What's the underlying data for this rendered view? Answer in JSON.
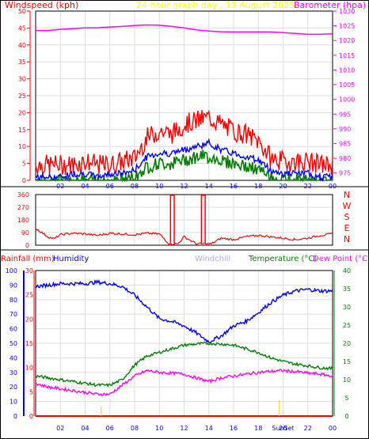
{
  "colors": {
    "wind_title": "#ff0000",
    "graph_title": "#ffff00",
    "barometer": "#ff00ff",
    "gust": "#ff0000",
    "wind_avg": "#0000ff",
    "wind_low": "#008000",
    "direction": "#ff0000",
    "rain": "#ff0000",
    "humidity": "#0000ff",
    "windchill": "#aaaaff",
    "temperature": "#008000",
    "dewpoint": "#ff00ff"
  },
  "chart_data": [
    {
      "type": "line",
      "title": "24 hour graph day , 19 August 2025",
      "ylabel": "Windspeed (kph)",
      "y2label": "Barometer (hpa)",
      "x_ticks": [
        "02",
        "04",
        "06",
        "08",
        "10",
        "12",
        "14",
        "16",
        "18",
        "20",
        "22",
        "00"
      ],
      "y_ticks": [
        "0",
        "5",
        "10",
        "15",
        "20",
        "25",
        "30",
        "35",
        "40",
        "45",
        "50"
      ],
      "y2_ticks": [
        "975",
        "980",
        "985",
        "990",
        "995",
        "1000",
        "1005",
        "1010",
        "1015",
        "1020",
        "1025",
        "1030"
      ],
      "xlim": [
        0,
        24
      ],
      "ylim": [
        0,
        50
      ],
      "y2lim": [
        972.5,
        1030
      ],
      "grid": true,
      "series": [
        {
          "axis": "right",
          "color": "barometer",
          "x": [
            0,
            1,
            2,
            3,
            4,
            5,
            6,
            7,
            8,
            9,
            10,
            11,
            12,
            13,
            14,
            15,
            16,
            17,
            18,
            19,
            20,
            21,
            22,
            23,
            24
          ],
          "values": [
            1023.4,
            1023.4,
            1023.8,
            1024.0,
            1024.3,
            1024.3,
            1024.6,
            1024.8,
            1025.1,
            1025.3,
            1025.2,
            1024.8,
            1024.3,
            1023.6,
            1023.2,
            1023.0,
            1022.9,
            1022.9,
            1022.9,
            1022.9,
            1022.7,
            1022.4,
            1022.1,
            1022.1,
            1022.3
          ]
        },
        {
          "axis": "left",
          "color": "gust",
          "x": [
            0,
            1,
            2,
            3,
            4,
            5,
            6,
            7,
            8,
            9,
            10,
            11,
            12,
            13,
            14,
            15,
            16,
            17,
            18,
            19,
            20,
            21,
            22,
            23,
            24
          ],
          "values": [
            4,
            4,
            4,
            4,
            5,
            4,
            4,
            5,
            6,
            12,
            14,
            13,
            16,
            17,
            18,
            16,
            14,
            13,
            11,
            6,
            5,
            5,
            5,
            4,
            4
          ]
        },
        {
          "axis": "left",
          "color": "wind_avg",
          "x": [
            0,
            1,
            2,
            3,
            4,
            5,
            6,
            7,
            8,
            9,
            10,
            11,
            12,
            13,
            14,
            15,
            16,
            17,
            18,
            19,
            20,
            21,
            22,
            23,
            24
          ],
          "values": [
            1,
            1,
            1,
            2,
            2,
            1,
            2,
            2,
            3,
            7,
            8,
            8,
            9,
            10,
            11,
            9,
            8,
            7,
            6,
            3,
            2,
            2,
            2,
            1,
            1
          ]
        },
        {
          "axis": "left",
          "color": "wind_low",
          "x": [
            0,
            1,
            2,
            3,
            4,
            5,
            6,
            7,
            8,
            9,
            10,
            11,
            12,
            13,
            14,
            15,
            16,
            17,
            18,
            19,
            20,
            21,
            22,
            23,
            24
          ],
          "values": [
            0,
            0,
            0,
            0,
            0,
            0,
            0,
            0,
            1,
            4,
            5,
            5,
            6,
            7,
            7,
            6,
            5,
            4,
            3,
            1,
            0,
            0,
            0,
            0,
            0
          ]
        }
      ]
    },
    {
      "type": "line",
      "xlim": [
        0,
        24
      ],
      "ylim": [
        0,
        360
      ],
      "y_ticks": [
        "0",
        "90",
        "180",
        "270",
        "360"
      ],
      "compass": [
        "N",
        "W",
        "S",
        "E",
        "N"
      ],
      "series": [
        {
          "color": "direction",
          "x": [
            0,
            0.5,
            1,
            1.5,
            2,
            3,
            4,
            5,
            6,
            7,
            8,
            9,
            10,
            10.8,
            11.5,
            12,
            13,
            13.4,
            14.2,
            15,
            16,
            17,
            18,
            19,
            20,
            21,
            22,
            23,
            24
          ],
          "values": [
            120,
            90,
            60,
            45,
            75,
            85,
            80,
            70,
            85,
            80,
            75,
            85,
            80,
            10,
            10,
            60,
            10,
            10,
            10,
            50,
            40,
            60,
            70,
            60,
            50,
            40,
            50,
            70,
            80
          ]
        }
      ]
    },
    {
      "type": "line",
      "legend": [
        "Rainfall (mm)",
        "Humidity",
        "Windchill",
        "Temperature (°C)",
        "Dew Point (°C)"
      ],
      "x_ticks": [
        "02",
        "04",
        "06",
        "08",
        "10",
        "12",
        "14",
        "16",
        "18",
        "SunSet",
        "20",
        "22",
        "00"
      ],
      "y_ticks": [
        "0",
        "10",
        "20",
        "30",
        "40",
        "50",
        "60",
        "70",
        "80",
        "90",
        "100"
      ],
      "rain_ticks": [
        "0",
        "5",
        "10",
        "15",
        "20",
        "25",
        "30"
      ],
      "y2_ticks": [
        "0",
        "5",
        "10",
        "15",
        "20",
        "25",
        "30",
        "35",
        "40"
      ],
      "xlim": [
        0,
        24
      ],
      "ylim": [
        0,
        100
      ],
      "y2lim": [
        0,
        40
      ],
      "series": [
        {
          "axis": "left",
          "name": "Humidity",
          "color": "humidity",
          "x": [
            0,
            1,
            2,
            3,
            4,
            5,
            6,
            7,
            8,
            9,
            10,
            11,
            12,
            13,
            14,
            15,
            16,
            17,
            18,
            19,
            20,
            21,
            22,
            23,
            24
          ],
          "values": [
            89,
            90,
            91,
            91,
            91,
            92,
            91,
            89,
            83,
            75,
            67,
            65,
            62,
            57,
            51,
            55,
            62,
            65,
            71,
            78,
            83,
            86,
            87,
            86,
            86
          ]
        },
        {
          "axis": "right",
          "name": "Temperature (°C)",
          "color": "temperature",
          "x": [
            0,
            1,
            2,
            3,
            4,
            5,
            6,
            7,
            8,
            9,
            10,
            11,
            12,
            13,
            14,
            15,
            16,
            17,
            18,
            19,
            20,
            21,
            22,
            23,
            24
          ],
          "values": [
            11,
            10.5,
            10,
            9.5,
            9,
            8.5,
            8.5,
            10,
            14,
            16.5,
            17.5,
            18.5,
            19.5,
            19.8,
            20,
            19.8,
            19.5,
            18.5,
            17.5,
            16,
            15,
            14.3,
            13.8,
            13.3,
            13
          ]
        },
        {
          "axis": "right",
          "name": "Dew Point (°C)",
          "color": "dewpoint",
          "x": [
            0,
            1,
            2,
            3,
            4,
            5,
            6,
            7,
            8,
            9,
            10,
            11,
            12,
            13,
            14,
            15,
            16,
            17,
            18,
            19,
            20,
            21,
            22,
            23,
            24
          ],
          "values": [
            9,
            8,
            7.5,
            7,
            6.5,
            6,
            6,
            8.5,
            11,
            12.5,
            12,
            11.8,
            11.5,
            10.5,
            9.5,
            10.5,
            11,
            11.5,
            12,
            12.3,
            12.5,
            12.2,
            11.8,
            11.5,
            11
          ]
        },
        {
          "axis": "rain",
          "name": "Rainfall (mm)",
          "color": "rain",
          "x": [
            0,
            24
          ],
          "values": [
            0,
            0
          ]
        }
      ],
      "markers": [
        {
          "x": 5.3,
          "height": 3
        },
        {
          "x": 19.7,
          "height": 5
        }
      ]
    }
  ]
}
